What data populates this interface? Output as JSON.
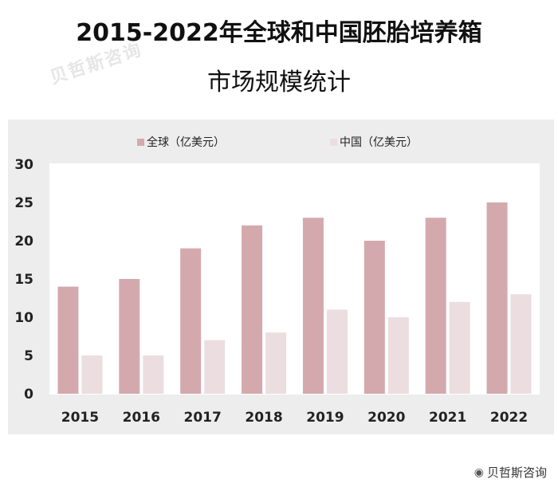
{
  "title_line1": "2015-2022年全球和中国胚胎培养箱",
  "title_line2": "市场规模统计",
  "watermark": "贝哲斯咨询",
  "credit": "贝哲斯咨询",
  "colors": {
    "global": "#d4a9ae",
    "china": "#ebdde0",
    "plot_bg": "#ffffff",
    "outer_bg": "#ededed"
  },
  "chart_data": {
    "type": "bar",
    "categories": [
      "2015",
      "2016",
      "2017",
      "2018",
      "2019",
      "2020",
      "2021",
      "2022"
    ],
    "series": [
      {
        "name": "全球（亿美元）",
        "values": [
          14,
          15,
          19,
          22,
          23,
          20,
          23,
          25
        ]
      },
      {
        "name": "中国（亿美元）",
        "values": [
          5,
          5,
          7,
          8,
          11,
          10,
          12,
          13
        ]
      }
    ],
    "yticks": [
      "0",
      "5",
      "10",
      "15",
      "20",
      "25",
      "30"
    ],
    "ylim": [
      0,
      30
    ],
    "grid": false,
    "legend": "top"
  }
}
